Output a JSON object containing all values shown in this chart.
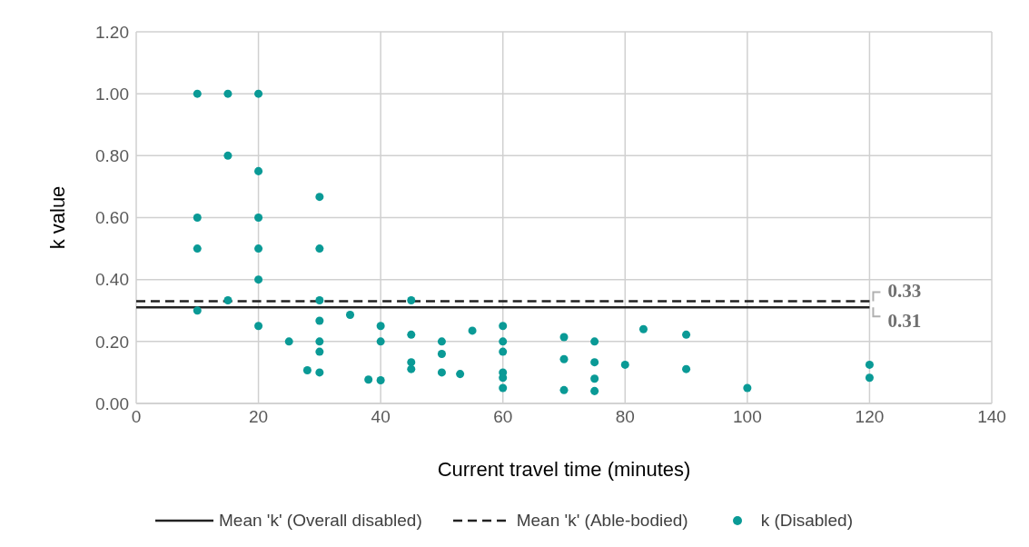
{
  "chart_data": {
    "type": "scatter",
    "xlabel": "Current travel time (minutes)",
    "ylabel": "k value",
    "xlim": [
      0,
      140
    ],
    "xticks": [
      0,
      20,
      40,
      60,
      80,
      100,
      120,
      140
    ],
    "ylim": [
      0,
      1.2
    ],
    "yticks": [
      {
        "value": 0,
        "label": "0.00"
      },
      {
        "value": 0.2,
        "label": "0.20"
      },
      {
        "value": 0.4,
        "label": "0.40"
      },
      {
        "value": 0.6,
        "label": "0.60"
      },
      {
        "value": 0.8,
        "label": "0.80"
      },
      {
        "value": 1,
        "label": "1.00"
      },
      {
        "value": 1.2,
        "label": "1.20"
      }
    ],
    "grid": true,
    "legend": "bottom",
    "series": [
      {
        "name": "Mean 'k' (Overall disabled)",
        "type": "line",
        "color": "#222222",
        "line_style": "solid",
        "marker": "none",
        "x": [
          0,
          120
        ],
        "values": [
          0.31,
          0.31
        ]
      },
      {
        "name": "Mean 'k' (Able-bodied)",
        "type": "line",
        "color": "#222222",
        "line_style": "dashed",
        "marker": "none",
        "x": [
          0,
          120
        ],
        "values": [
          0.33,
          0.33
        ]
      },
      {
        "name": "k (Disabled)",
        "color": "#0a9a96",
        "marker": "circle",
        "x": [
          10,
          10,
          10,
          10,
          15,
          15,
          15,
          20,
          20,
          20,
          20,
          20,
          20,
          25,
          28,
          30,
          30,
          30,
          30,
          30,
          30,
          30,
          35,
          38,
          40,
          40,
          40,
          45,
          45,
          45,
          45,
          50,
          50,
          50,
          53,
          55,
          60,
          60,
          60,
          60,
          60,
          60,
          70,
          70,
          70,
          75,
          75,
          75,
          75,
          80,
          83,
          90,
          90,
          100,
          120,
          120
        ],
        "values": [
          1.0,
          0.6,
          0.5,
          0.3,
          1.0,
          0.8,
          0.333,
          1.0,
          0.75,
          0.6,
          0.5,
          0.4,
          0.25,
          0.2,
          0.107,
          0.667,
          0.5,
          0.333,
          0.267,
          0.2,
          0.167,
          0.1,
          0.286,
          0.077,
          0.25,
          0.2,
          0.075,
          0.333,
          0.222,
          0.133,
          0.111,
          0.2,
          0.16,
          0.1,
          0.095,
          0.235,
          0.25,
          0.2,
          0.167,
          0.1,
          0.083,
          0.05,
          0.214,
          0.143,
          0.043,
          0.2,
          0.133,
          0.08,
          0.04,
          0.125,
          0.24,
          0.222,
          0.111,
          0.05,
          0.125,
          0.083
        ]
      }
    ],
    "annotations": [
      {
        "text": "0.33",
        "x": 120,
        "y": 0.33
      },
      {
        "text": "0.31",
        "x": 120,
        "y": 0.31
      }
    ]
  }
}
